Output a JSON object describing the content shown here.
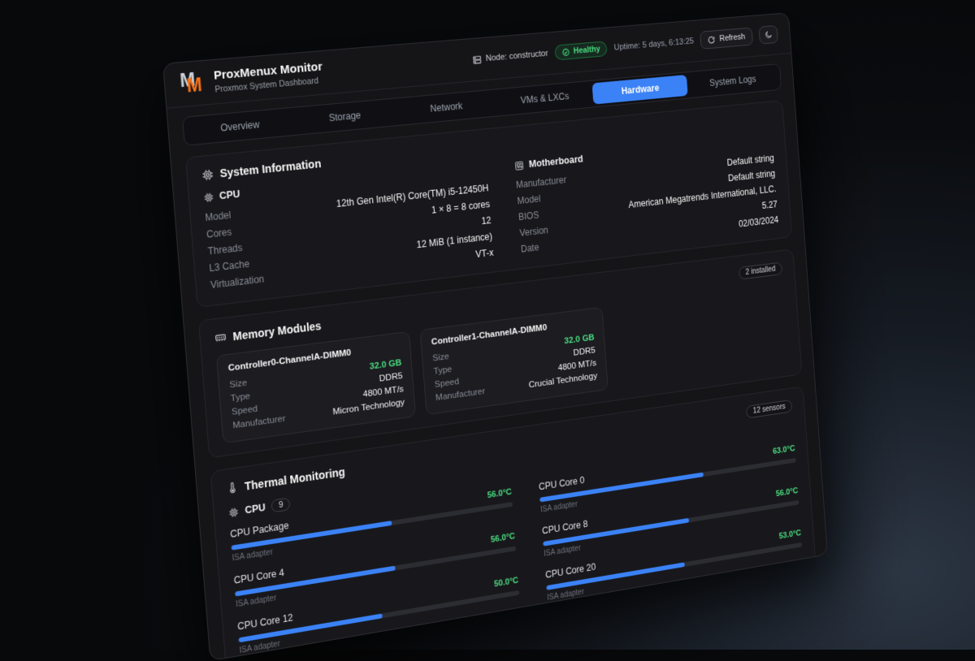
{
  "header": {
    "title": "ProxMenux Monitor",
    "subtitle": "Proxmox System Dashboard",
    "node_label": "Node: constructor",
    "health_label": "Healthy",
    "uptime_label": "Uptime: 5 days, 6:13:25",
    "refresh_label": "Refresh"
  },
  "tabs": [
    {
      "label": "Overview"
    },
    {
      "label": "Storage"
    },
    {
      "label": "Network"
    },
    {
      "label": "VMs & LXCs"
    },
    {
      "label": "Hardware"
    },
    {
      "label": "System Logs"
    }
  ],
  "active_tab": "Hardware",
  "system_info": {
    "title": "System Information",
    "cpu": {
      "title": "CPU",
      "rows": [
        {
          "label": "Model",
          "value": "12th Gen Intel(R) Core(TM) i5-12450H"
        },
        {
          "label": "Cores",
          "value": "1 × 8 = 8 cores"
        },
        {
          "label": "Threads",
          "value": "12"
        },
        {
          "label": "L3 Cache",
          "value": "12 MiB (1 instance)"
        },
        {
          "label": "Virtualization",
          "value": "VT-x"
        }
      ]
    },
    "motherboard": {
      "title": "Motherboard",
      "rows": [
        {
          "label": "Manufacturer",
          "value": "Default string"
        },
        {
          "label": "Model",
          "value": "Default string"
        },
        {
          "label": "BIOS",
          "value": "American Megatrends International, LLC."
        },
        {
          "label": "Version",
          "value": "5.27"
        },
        {
          "label": "Date",
          "value": "02/03/2024"
        }
      ]
    }
  },
  "memory": {
    "title": "Memory Modules",
    "badge": "2 installed",
    "modules": [
      {
        "name": "Controller0-ChannelA-DIMM0",
        "rows": [
          {
            "label": "Size",
            "value": "32.0 GB"
          },
          {
            "label": "Type",
            "value": "DDR5"
          },
          {
            "label": "Speed",
            "value": "4800 MT/s"
          },
          {
            "label": "Manufacturer",
            "value": "Micron Technology"
          }
        ]
      },
      {
        "name": "Controller1-ChannelA-DIMM0",
        "rows": [
          {
            "label": "Size",
            "value": "32.0 GB"
          },
          {
            "label": "Type",
            "value": "DDR5"
          },
          {
            "label": "Speed",
            "value": "4800 MT/s"
          },
          {
            "label": "Manufacturer",
            "value": "Crucial Technology"
          }
        ]
      }
    ]
  },
  "thermal": {
    "title": "Thermal Monitoring",
    "badge": "12 sensors",
    "group": {
      "title": "CPU",
      "count": "9"
    },
    "sensors": [
      {
        "name": "CPU Package",
        "temp": "56.0°C",
        "adapter": "ISA adapter",
        "percent": 56
      },
      {
        "name": "CPU Core 0",
        "temp": "63.0°C",
        "adapter": "ISA adapter",
        "percent": 63
      },
      {
        "name": "CPU Core 4",
        "temp": "56.0°C",
        "adapter": "ISA adapter",
        "percent": 56
      },
      {
        "name": "CPU Core 8",
        "temp": "56.0°C",
        "adapter": "ISA adapter",
        "percent": 56
      },
      {
        "name": "CPU Core 12",
        "temp": "50.0°C",
        "adapter": "ISA adapter",
        "percent": 50
      },
      {
        "name": "CPU Core 20",
        "temp": "53.0°C",
        "adapter": "ISA adapter",
        "percent": 53
      }
    ]
  },
  "colors": {
    "accent": "#3b82f6",
    "healthy_green": "#22c55e",
    "temp_green": "#4ade80",
    "brand_orange": "#f97316"
  }
}
